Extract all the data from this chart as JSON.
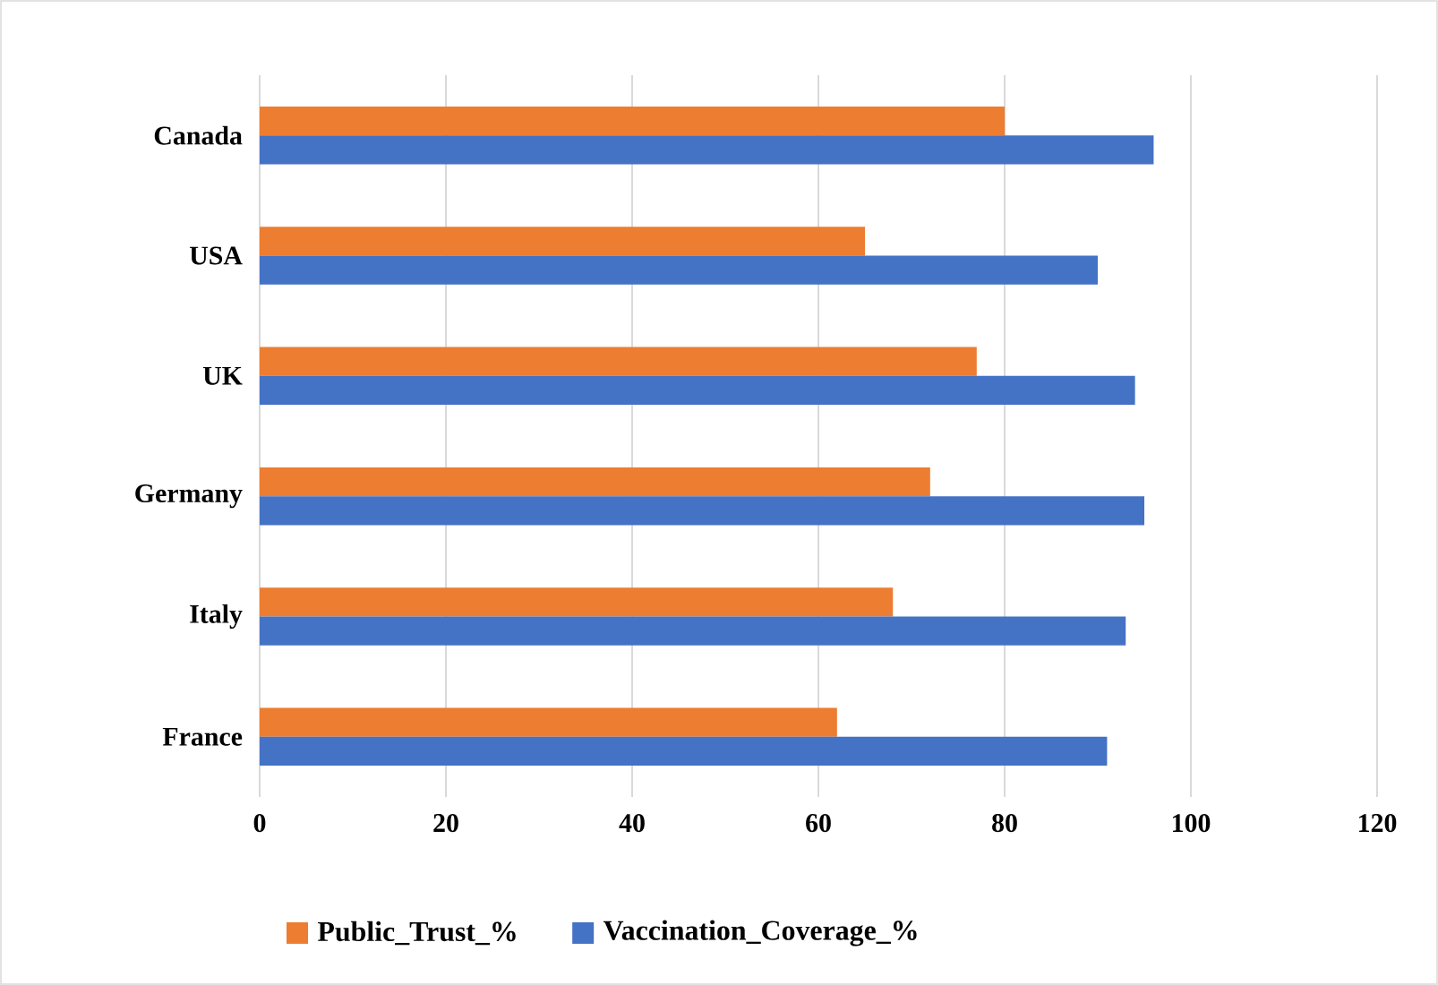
{
  "chart_data": {
    "type": "bar",
    "orientation": "horizontal",
    "categories": [
      "Canada",
      "USA",
      "UK",
      "Germany",
      "Italy",
      "France"
    ],
    "series": [
      {
        "name": "Public_Trust_%",
        "color": "#ed7d31",
        "values": [
          80,
          65,
          77,
          72,
          68,
          62
        ]
      },
      {
        "name": "Vaccination_Coverage_%",
        "color": "#4472c4",
        "values": [
          96,
          90,
          94,
          95,
          93,
          91
        ]
      }
    ],
    "xlim": [
      0,
      120
    ],
    "xticks": [
      0,
      20,
      40,
      60,
      80,
      100,
      120
    ],
    "grid": "x",
    "legend": "bottom"
  }
}
